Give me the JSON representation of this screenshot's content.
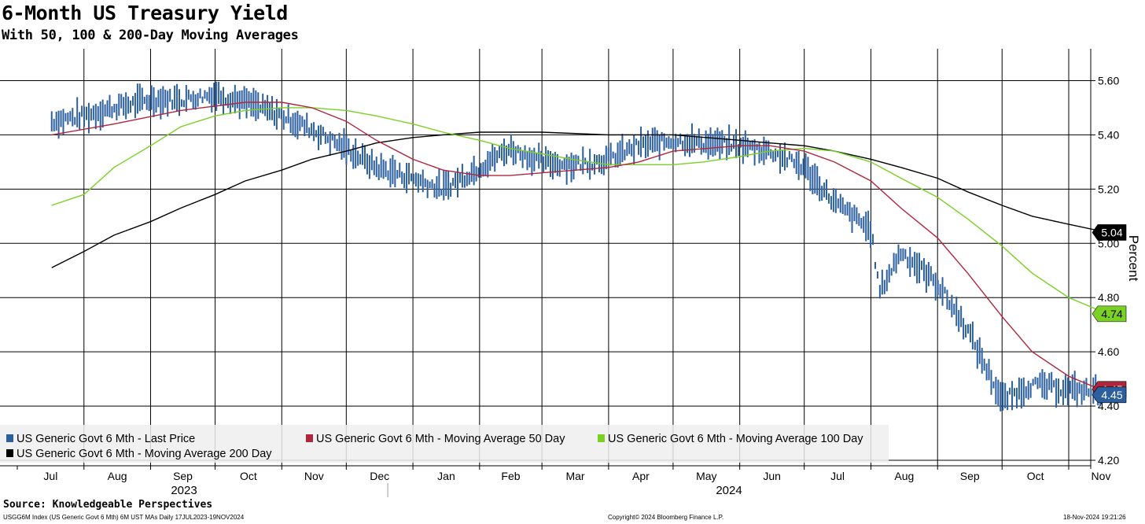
{
  "header": {
    "title": "6-Month US Treasury Yield",
    "subtitle": "With 50, 100 & 200-Day Moving Averages"
  },
  "footer": {
    "source": "Source: Knowledgeable Perspectives",
    "index_info": "USGG6M Index (US Generic Govt 6 Mth) 6M UST MAs  Daily 17JUL2023-19NOV2024",
    "copyright": "Copyright© 2024 Bloomberg Finance L.P.",
    "timestamp": "18-Nov-2024 19:21:26"
  },
  "chart_data": {
    "type": "line",
    "ylabel": "Percent",
    "ylim": [
      4.2,
      5.7
    ],
    "yticks": [
      4.2,
      4.4,
      4.6,
      4.8,
      5.0,
      5.2,
      5.4,
      5.6
    ],
    "grid": true,
    "legend_position": "bottom-left",
    "x_months": [
      "Jul",
      "Aug",
      "Sep",
      "Oct",
      "Nov",
      "Dec",
      "Jan",
      "Feb",
      "Mar",
      "Apr",
      "May",
      "Jun",
      "Jul",
      "Aug",
      "Sep",
      "Oct",
      "Nov"
    ],
    "x_years": [
      "2023",
      "2024"
    ],
    "series": [
      {
        "name": "US Generic Govt 6 Mth - Last Price",
        "style": "price-bars",
        "color": "#2b5f9e",
        "last_value": "4.45",
        "x": [
          "2023-07-17",
          "2023-08-01",
          "2023-08-15",
          "2023-09-01",
          "2023-09-15",
          "2023-10-01",
          "2023-10-15",
          "2023-11-01",
          "2023-11-15",
          "2023-12-01",
          "2023-12-15",
          "2024-01-01",
          "2024-01-15",
          "2024-02-01",
          "2024-02-15",
          "2024-03-01",
          "2024-03-15",
          "2024-04-01",
          "2024-04-15",
          "2024-05-01",
          "2024-05-15",
          "2024-06-01",
          "2024-06-15",
          "2024-07-01",
          "2024-07-15",
          "2024-08-01",
          "2024-08-05",
          "2024-08-15",
          "2024-09-01",
          "2024-09-15",
          "2024-10-01",
          "2024-10-15",
          "2024-11-01",
          "2024-11-19"
        ],
        "values": [
          5.45,
          5.47,
          5.5,
          5.53,
          5.53,
          5.55,
          5.52,
          5.47,
          5.42,
          5.35,
          5.28,
          5.24,
          5.2,
          5.28,
          5.35,
          5.3,
          5.29,
          5.31,
          5.36,
          5.38,
          5.37,
          5.36,
          5.34,
          5.28,
          5.15,
          5.05,
          4.82,
          4.97,
          4.85,
          4.68,
          4.42,
          4.48,
          4.46,
          4.45
        ]
      },
      {
        "name": "US Generic Govt 6 Mth - Moving Average 50 Day",
        "style": "line",
        "color": "#b0263d",
        "last_value": "4.45",
        "x": [
          "2023-07-17",
          "2023-08-15",
          "2023-09-15",
          "2023-10-15",
          "2023-11-01",
          "2023-11-15",
          "2023-12-01",
          "2023-12-15",
          "2024-01-01",
          "2024-01-15",
          "2024-02-01",
          "2024-02-15",
          "2024-03-01",
          "2024-04-01",
          "2024-04-15",
          "2024-05-01",
          "2024-06-01",
          "2024-06-15",
          "2024-07-01",
          "2024-07-15",
          "2024-08-01",
          "2024-08-15",
          "2024-09-01",
          "2024-09-15",
          "2024-10-01",
          "2024-10-15",
          "2024-11-01",
          "2024-11-19"
        ],
        "values": [
          5.4,
          5.44,
          5.49,
          5.52,
          5.52,
          5.5,
          5.45,
          5.38,
          5.31,
          5.27,
          5.25,
          5.25,
          5.26,
          5.28,
          5.3,
          5.34,
          5.36,
          5.36,
          5.34,
          5.3,
          5.23,
          5.13,
          5.02,
          4.89,
          4.73,
          4.6,
          4.51,
          4.45
        ]
      },
      {
        "name": "US Generic Govt 6 Mth - Moving Average 100 Day",
        "style": "line",
        "color": "#7ad124",
        "last_value": "4.74",
        "x": [
          "2023-07-17",
          "2023-08-01",
          "2023-08-15",
          "2023-09-01",
          "2023-09-15",
          "2023-10-01",
          "2023-10-15",
          "2023-11-01",
          "2023-11-15",
          "2023-12-01",
          "2023-12-15",
          "2024-01-01",
          "2024-01-15",
          "2024-02-01",
          "2024-02-15",
          "2024-03-01",
          "2024-03-15",
          "2024-04-01",
          "2024-05-01",
          "2024-05-15",
          "2024-06-01",
          "2024-06-15",
          "2024-07-01",
          "2024-07-15",
          "2024-08-01",
          "2024-08-15",
          "2024-09-01",
          "2024-09-15",
          "2024-10-01",
          "2024-10-15",
          "2024-11-01",
          "2024-11-19"
        ],
        "values": [
          5.14,
          5.18,
          5.28,
          5.36,
          5.43,
          5.47,
          5.49,
          5.5,
          5.5,
          5.49,
          5.47,
          5.44,
          5.41,
          5.38,
          5.35,
          5.33,
          5.31,
          5.29,
          5.29,
          5.3,
          5.32,
          5.34,
          5.35,
          5.34,
          5.3,
          5.24,
          5.17,
          5.09,
          4.99,
          4.89,
          4.8,
          4.74
        ]
      },
      {
        "name": "US Generic Govt 6 Mth - Moving Average 200 Day",
        "style": "line",
        "color": "#000000",
        "last_value": "5.04",
        "x": [
          "2023-07-17",
          "2023-08-01",
          "2023-08-15",
          "2023-09-01",
          "2023-09-15",
          "2023-10-01",
          "2023-10-15",
          "2023-11-01",
          "2023-11-15",
          "2023-12-01",
          "2023-12-15",
          "2024-01-01",
          "2024-01-15",
          "2024-02-01",
          "2024-02-15",
          "2024-03-01",
          "2024-04-01",
          "2024-05-01",
          "2024-06-01",
          "2024-06-15",
          "2024-07-01",
          "2024-07-15",
          "2024-08-01",
          "2024-08-15",
          "2024-09-01",
          "2024-09-15",
          "2024-10-01",
          "2024-10-15",
          "2024-11-01",
          "2024-11-19"
        ],
        "values": [
          4.91,
          4.97,
          5.03,
          5.08,
          5.13,
          5.18,
          5.23,
          5.27,
          5.31,
          5.34,
          5.37,
          5.39,
          5.4,
          5.41,
          5.41,
          5.41,
          5.4,
          5.4,
          5.38,
          5.37,
          5.36,
          5.34,
          5.31,
          5.28,
          5.24,
          5.19,
          5.14,
          5.1,
          5.07,
          5.04
        ]
      }
    ]
  }
}
